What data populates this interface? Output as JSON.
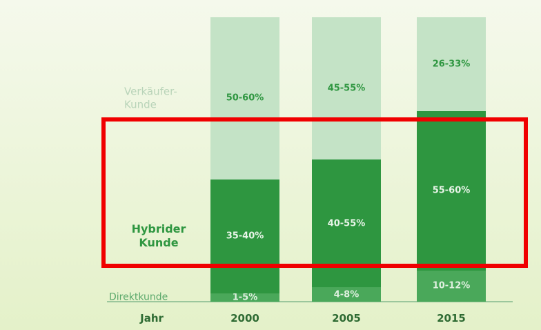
{
  "chart_data": {
    "type": "stacked_bar",
    "x_label": "Jahr",
    "categories": [
      "2000",
      "2005",
      "2015"
    ],
    "ylim": [
      0,
      100
    ],
    "series": [
      {
        "name": "Direktkunde",
        "color": "#4aa85a",
        "values": [
          3,
          5,
          11
        ],
        "value_labels": [
          "1-5%",
          "4-8%",
          "10-12%"
        ]
      },
      {
        "name": "Hybrider Kunde",
        "color": "#2e9640",
        "values": [
          40,
          45,
          56
        ],
        "value_labels": [
          "35-40%",
          "40-55%",
          "55-60%"
        ]
      },
      {
        "name": "Verkäufer-Kunde",
        "color": "#c4e3c6",
        "values": [
          57,
          50,
          33
        ],
        "value_labels": [
          "50-60%",
          "45-55%",
          "26-33%"
        ]
      }
    ]
  }
}
